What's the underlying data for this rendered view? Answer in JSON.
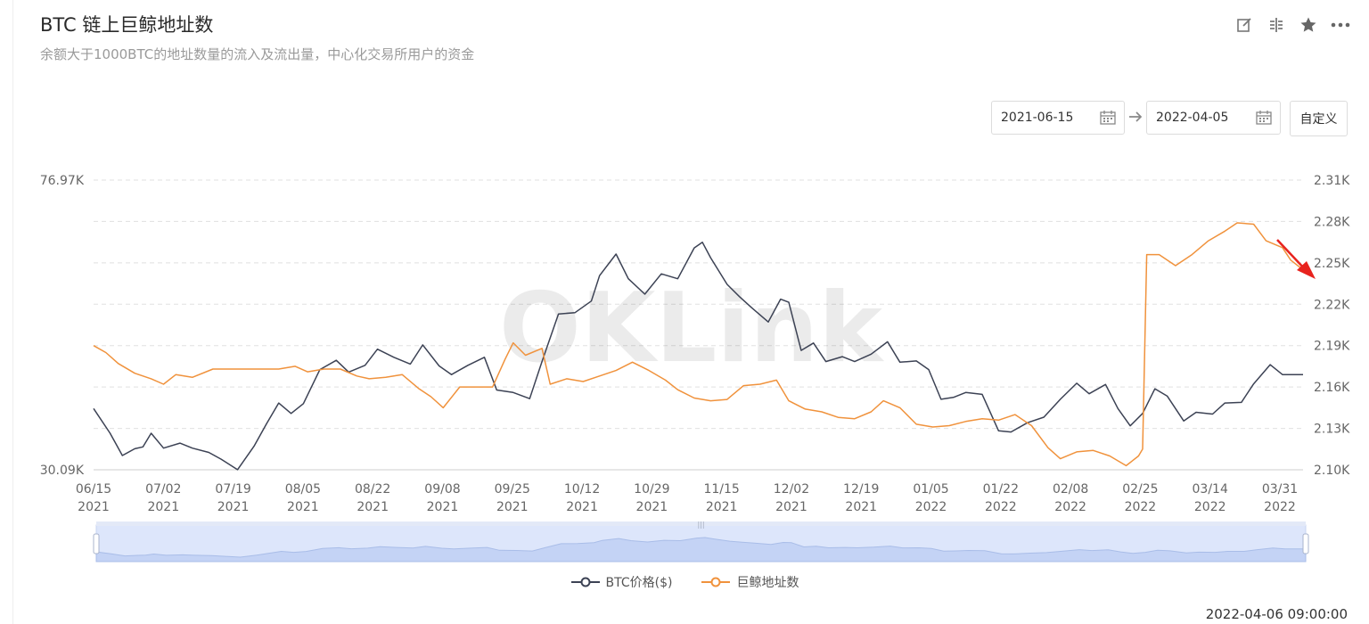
{
  "header": {
    "title": "BTC 链上巨鲸地址数",
    "subtitle": "余额大于1000BTC的地址数量的流入及流出量，中心化交易所用户的资金"
  },
  "toolbar": {
    "icons": [
      "edit-icon",
      "compare-icon",
      "star-icon",
      "more-icon"
    ]
  },
  "date_range": {
    "start": "2021-06-15",
    "end": "2022-04-05",
    "custom_label": "自定义"
  },
  "watermark": "OKLink",
  "timestamp": "2022-04-06 09:00:00",
  "colors": {
    "btc": "#3c4254",
    "whale": "#f0923c",
    "grid": "#e0e0e0",
    "navigator_fill": "#dde6fb",
    "navigator_line": "#a9bde8",
    "annotation_arrow": "#e8231e"
  },
  "chart_data": {
    "type": "line",
    "title": "",
    "x_tick_labels": [
      [
        "06/15",
        "2021"
      ],
      [
        "07/02",
        "2021"
      ],
      [
        "07/19",
        "2021"
      ],
      [
        "08/05",
        "2021"
      ],
      [
        "08/22",
        "2021"
      ],
      [
        "09/08",
        "2021"
      ],
      [
        "09/25",
        "2021"
      ],
      [
        "10/12",
        "2021"
      ],
      [
        "10/29",
        "2021"
      ],
      [
        "11/15",
        "2021"
      ],
      [
        "12/02",
        "2021"
      ],
      [
        "12/19",
        "2021"
      ],
      [
        "01/05",
        "2022"
      ],
      [
        "01/22",
        "2022"
      ],
      [
        "02/08",
        "2022"
      ],
      [
        "02/25",
        "2022"
      ],
      [
        "03/14",
        "2022"
      ],
      [
        "03/31",
        "2022"
      ]
    ],
    "x_range": [
      "2021-06-15",
      "2022-04-05"
    ],
    "y_left": {
      "min_label": "30.09K",
      "max_label": "76.97K",
      "min": 30090,
      "max": 76970
    },
    "y_right": {
      "tick_labels": [
        "2.10K",
        "2.13K",
        "2.16K",
        "2.19K",
        "2.22K",
        "2.25K",
        "2.28K",
        "2.31K"
      ],
      "min": 2100,
      "max": 2310
    },
    "grid": true,
    "legend_position": "bottom-center",
    "series": [
      {
        "name": "BTC价格($)",
        "axis": "left",
        "points": [
          [
            "2021-06-15",
            40000
          ],
          [
            "2021-06-19",
            36000
          ],
          [
            "2021-06-22",
            32400
          ],
          [
            "2021-06-25",
            33500
          ],
          [
            "2021-06-27",
            33800
          ],
          [
            "2021-06-29",
            36000
          ],
          [
            "2021-07-02",
            33600
          ],
          [
            "2021-07-06",
            34400
          ],
          [
            "2021-07-09",
            33600
          ],
          [
            "2021-07-13",
            32900
          ],
          [
            "2021-07-16",
            31800
          ],
          [
            "2021-07-20",
            30100
          ],
          [
            "2021-07-24",
            33900
          ],
          [
            "2021-07-27",
            37500
          ],
          [
            "2021-07-30",
            40900
          ],
          [
            "2021-08-02",
            39200
          ],
          [
            "2021-08-05",
            40800
          ],
          [
            "2021-08-09",
            46300
          ],
          [
            "2021-08-13",
            47800
          ],
          [
            "2021-08-16",
            45900
          ],
          [
            "2021-08-20",
            47000
          ],
          [
            "2021-08-23",
            49600
          ],
          [
            "2021-08-27",
            48300
          ],
          [
            "2021-08-31",
            47200
          ],
          [
            "2021-09-03",
            50300
          ],
          [
            "2021-09-07",
            46900
          ],
          [
            "2021-09-10",
            45500
          ],
          [
            "2021-09-14",
            47000
          ],
          [
            "2021-09-18",
            48300
          ],
          [
            "2021-09-21",
            43000
          ],
          [
            "2021-09-25",
            42600
          ],
          [
            "2021-09-29",
            41600
          ],
          [
            "2021-10-02",
            47600
          ],
          [
            "2021-10-06",
            55300
          ],
          [
            "2021-10-10",
            55500
          ],
          [
            "2021-10-14",
            57400
          ],
          [
            "2021-10-16",
            61500
          ],
          [
            "2021-10-20",
            65000
          ],
          [
            "2021-10-23",
            61000
          ],
          [
            "2021-10-27",
            58500
          ],
          [
            "2021-10-31",
            61800
          ],
          [
            "2021-11-04",
            61000
          ],
          [
            "2021-11-08",
            66000
          ],
          [
            "2021-11-10",
            66900
          ],
          [
            "2021-11-12",
            64400
          ],
          [
            "2021-11-16",
            60100
          ],
          [
            "2021-11-19",
            58100
          ],
          [
            "2021-11-22",
            56300
          ],
          [
            "2021-11-26",
            54000
          ],
          [
            "2021-11-29",
            57700
          ],
          [
            "2021-12-01",
            57200
          ],
          [
            "2021-12-04",
            49400
          ],
          [
            "2021-12-07",
            50600
          ],
          [
            "2021-12-10",
            47600
          ],
          [
            "2021-12-14",
            48400
          ],
          [
            "2021-12-17",
            47600
          ],
          [
            "2021-12-21",
            48800
          ],
          [
            "2021-12-25",
            50800
          ],
          [
            "2021-12-28",
            47500
          ],
          [
            "2022-01-01",
            47700
          ],
          [
            "2022-01-04",
            46300
          ],
          [
            "2022-01-07",
            41500
          ],
          [
            "2022-01-10",
            41800
          ],
          [
            "2022-01-13",
            42600
          ],
          [
            "2022-01-17",
            42300
          ],
          [
            "2022-01-21",
            36400
          ],
          [
            "2022-01-24",
            36200
          ],
          [
            "2022-01-28",
            37700
          ],
          [
            "2022-02-01",
            38600
          ],
          [
            "2022-02-05",
            41500
          ],
          [
            "2022-02-09",
            44100
          ],
          [
            "2022-02-12",
            42400
          ],
          [
            "2022-02-16",
            43900
          ],
          [
            "2022-02-19",
            40000
          ],
          [
            "2022-02-22",
            37200
          ],
          [
            "2022-02-25",
            39200
          ],
          [
            "2022-02-28",
            43200
          ],
          [
            "2022-03-03",
            42000
          ],
          [
            "2022-03-07",
            38000
          ],
          [
            "2022-03-10",
            39400
          ],
          [
            "2022-03-14",
            39100
          ],
          [
            "2022-03-17",
            40900
          ],
          [
            "2022-03-21",
            41000
          ],
          [
            "2022-03-24",
            44000
          ],
          [
            "2022-03-28",
            47100
          ],
          [
            "2022-03-31",
            45500
          ],
          [
            "2022-04-05",
            45500
          ]
        ]
      },
      {
        "name": "巨鲸地址数",
        "axis": "right",
        "points": [
          [
            "2021-06-15",
            2190
          ],
          [
            "2021-06-18",
            2185
          ],
          [
            "2021-06-21",
            2177
          ],
          [
            "2021-06-25",
            2170
          ],
          [
            "2021-06-29",
            2166
          ],
          [
            "2021-07-02",
            2162
          ],
          [
            "2021-07-05",
            2169
          ],
          [
            "2021-07-09",
            2167
          ],
          [
            "2021-07-14",
            2173
          ],
          [
            "2021-07-18",
            2173
          ],
          [
            "2021-07-22",
            2173
          ],
          [
            "2021-07-26",
            2173
          ],
          [
            "2021-07-30",
            2173
          ],
          [
            "2021-08-03",
            2175
          ],
          [
            "2021-08-06",
            2171
          ],
          [
            "2021-08-10",
            2173
          ],
          [
            "2021-08-14",
            2173
          ],
          [
            "2021-08-18",
            2168
          ],
          [
            "2021-08-21",
            2166
          ],
          [
            "2021-08-25",
            2167
          ],
          [
            "2021-08-29",
            2169
          ],
          [
            "2021-09-02",
            2159
          ],
          [
            "2021-09-05",
            2153
          ],
          [
            "2021-09-08",
            2145
          ],
          [
            "2021-09-12",
            2160
          ],
          [
            "2021-09-16",
            2160
          ],
          [
            "2021-09-20",
            2160
          ],
          [
            "2021-09-23",
            2180
          ],
          [
            "2021-09-25",
            2192
          ],
          [
            "2021-09-28",
            2183
          ],
          [
            "2021-10-02",
            2188
          ],
          [
            "2021-10-04",
            2162
          ],
          [
            "2021-10-08",
            2166
          ],
          [
            "2021-10-12",
            2164
          ],
          [
            "2021-10-16",
            2168
          ],
          [
            "2021-10-20",
            2172
          ],
          [
            "2021-10-24",
            2178
          ],
          [
            "2021-10-28",
            2172
          ],
          [
            "2021-11-01",
            2165
          ],
          [
            "2021-11-04",
            2158
          ],
          [
            "2021-11-08",
            2152
          ],
          [
            "2021-11-12",
            2150
          ],
          [
            "2021-11-16",
            2151
          ],
          [
            "2021-11-20",
            2161
          ],
          [
            "2021-11-24",
            2162
          ],
          [
            "2021-11-28",
            2165
          ],
          [
            "2021-12-01",
            2150
          ],
          [
            "2021-12-05",
            2144
          ],
          [
            "2021-12-09",
            2142
          ],
          [
            "2021-12-13",
            2138
          ],
          [
            "2021-12-17",
            2137
          ],
          [
            "2021-12-21",
            2142
          ],
          [
            "2021-12-24",
            2150
          ],
          [
            "2021-12-28",
            2145
          ],
          [
            "2022-01-01",
            2133
          ],
          [
            "2022-01-05",
            2131
          ],
          [
            "2022-01-09",
            2132
          ],
          [
            "2022-01-13",
            2135
          ],
          [
            "2022-01-17",
            2137
          ],
          [
            "2022-01-21",
            2136
          ],
          [
            "2022-01-25",
            2140
          ],
          [
            "2022-01-29",
            2132
          ],
          [
            "2022-02-02",
            2116
          ],
          [
            "2022-02-05",
            2108
          ],
          [
            "2022-02-09",
            2113
          ],
          [
            "2022-02-13",
            2114
          ],
          [
            "2022-02-17",
            2110
          ],
          [
            "2022-02-21",
            2103
          ],
          [
            "2022-02-24",
            2110
          ],
          [
            "2022-02-25",
            2115
          ],
          [
            "2022-02-26",
            2256
          ],
          [
            "2022-03-01",
            2256
          ],
          [
            "2022-03-05",
            2248
          ],
          [
            "2022-03-09",
            2256
          ],
          [
            "2022-03-13",
            2266
          ],
          [
            "2022-03-17",
            2273
          ],
          [
            "2022-03-20",
            2279
          ],
          [
            "2022-03-24",
            2278
          ],
          [
            "2022-03-27",
            2266
          ],
          [
            "2022-03-31",
            2261
          ],
          [
            "2022-04-02",
            2252
          ],
          [
            "2022-04-05",
            2245
          ]
        ]
      }
    ]
  }
}
